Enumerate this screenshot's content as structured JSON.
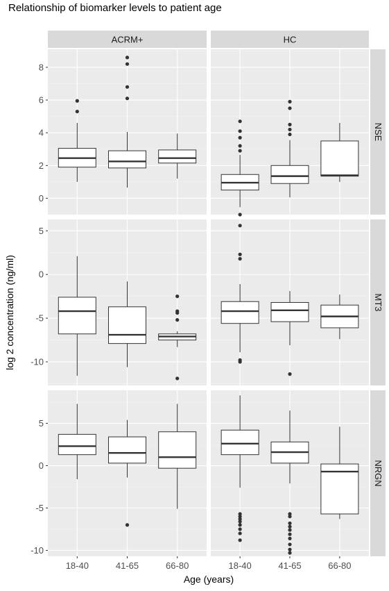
{
  "chart_data": {
    "type": "box",
    "title": "Relationship of biomarker levels to patient age",
    "xlabel": "Age (years)",
    "ylabel": "log 2 concentration (ng/ml)",
    "column_facets": [
      "ACRM+",
      "HC"
    ],
    "categories": [
      "18-40",
      "41-65",
      "66-80"
    ],
    "colors": {
      "panel": "#EBEBEB",
      "strip": "#D9D9D9",
      "grid_major": "#FFFFFF",
      "grid_minor": "#F3F3F3",
      "box_fill": "#FFFFFF",
      "line": "#333333"
    },
    "grid": true,
    "rows": [
      {
        "name": "NSE",
        "ylim": [
          -1.0,
          9.1
        ],
        "yticks": [
          0,
          2,
          4,
          6,
          8
        ],
        "ytick_labels": [
          "0",
          "2",
          "4",
          "6",
          "8"
        ],
        "boxes": {
          "ACRM+": [
            {
              "cat": "18-40",
              "lo": 1.0,
              "q1": 1.9,
              "med": 2.45,
              "q3": 3.05,
              "hi": 4.6,
              "outliers": [
                5.3,
                5.95
              ]
            },
            {
              "cat": "41-65",
              "lo": 0.65,
              "q1": 1.85,
              "med": 2.25,
              "q3": 2.9,
              "hi": 4.05,
              "outliers": [
                6.1,
                6.8,
                8.2,
                8.6
              ]
            },
            {
              "cat": "66-80",
              "lo": 1.2,
              "q1": 2.15,
              "med": 2.45,
              "q3": 2.95,
              "hi": 3.95,
              "outliers": []
            }
          ],
          "HC": [
            {
              "cat": "18-40",
              "lo": -0.55,
              "q1": 0.5,
              "med": 0.95,
              "q3": 1.45,
              "hi": 2.65,
              "outliers": [
                -1.0,
                2.9,
                3.2,
                3.7,
                4.1,
                4.7
              ]
            },
            {
              "cat": "41-65",
              "lo": 0.05,
              "q1": 0.9,
              "med": 1.35,
              "q3": 2.0,
              "hi": 3.55,
              "outliers": [
                3.9,
                4.2,
                4.5,
                5.5,
                5.9
              ]
            },
            {
              "cat": "66-80",
              "lo": 1.0,
              "q1": 1.35,
              "med": 1.4,
              "q3": 3.5,
              "hi": 4.6,
              "outliers": []
            }
          ]
        }
      },
      {
        "name": "MT3",
        "ylim": [
          -12.7,
          6.3
        ],
        "yticks": [
          5,
          0,
          -5,
          -10
        ],
        "ytick_labels": [
          "5",
          "0",
          "-5",
          "-10"
        ],
        "boxes": {
          "ACRM+": [
            {
              "cat": "18-40",
              "lo": -11.6,
              "q1": -6.8,
              "med": -4.2,
              "q3": -2.6,
              "hi": 2.1,
              "outliers": []
            },
            {
              "cat": "41-65",
              "lo": -10.6,
              "q1": -7.9,
              "med": -6.9,
              "q3": -3.7,
              "hi": -0.8,
              "outliers": []
            },
            {
              "cat": "66-80",
              "lo": -8.3,
              "q1": -7.5,
              "med": -7.1,
              "q3": -6.8,
              "hi": -6.5,
              "outliers": [
                -2.5,
                -4.2,
                -4.4,
                -5.2,
                -11.9
              ]
            }
          ],
          "HC": [
            {
              "cat": "18-40",
              "lo": -8.9,
              "q1": -5.6,
              "med": -4.2,
              "q3": -3.1,
              "hi": -1.1,
              "outliers": [
                5.6,
                2.3,
                1.8,
                -9.8,
                -10.0
              ]
            },
            {
              "cat": "41-65",
              "lo": -8.1,
              "q1": -5.4,
              "med": -4.1,
              "q3": -3.2,
              "hi": -1.9,
              "outliers": [
                -11.4
              ]
            },
            {
              "cat": "66-80",
              "lo": -7.4,
              "q1": -6.1,
              "med": -4.8,
              "q3": -3.5,
              "hi": -2.3,
              "outliers": []
            }
          ]
        }
      },
      {
        "name": "NRGN",
        "ylim": [
          -10.7,
          8.9
        ],
        "yticks": [
          5,
          0,
          -5,
          -10
        ],
        "ytick_labels": [
          "5",
          "0",
          "-5",
          "-10"
        ],
        "boxes": {
          "ACRM+": [
            {
              "cat": "18-40",
              "lo": -1.6,
              "q1": 1.3,
              "med": 2.3,
              "q3": 3.7,
              "hi": 7.3,
              "outliers": []
            },
            {
              "cat": "41-65",
              "lo": -1.4,
              "q1": 0.3,
              "med": 1.5,
              "q3": 3.4,
              "hi": 5.4,
              "outliers": [
                -7.0
              ]
            },
            {
              "cat": "66-80",
              "lo": -5.1,
              "q1": -0.3,
              "med": 1.0,
              "q3": 4.0,
              "hi": 7.3,
              "outliers": []
            }
          ],
          "HC": [
            {
              "cat": "18-40",
              "lo": -2.6,
              "q1": 1.3,
              "med": 2.6,
              "q3": 4.2,
              "hi": 8.3,
              "outliers": [
                -5.7,
                -6.0,
                -6.3,
                -6.6,
                -7.0,
                -7.5,
                -8.0,
                -8.8
              ]
            },
            {
              "cat": "41-65",
              "lo": -2.1,
              "q1": 0.3,
              "med": 1.6,
              "q3": 2.8,
              "hi": 6.5,
              "outliers": [
                -5.7,
                -6.0,
                -6.8,
                -7.2,
                -7.6,
                -8.1,
                -8.6,
                -9.3,
                -9.9,
                -10.3
              ]
            },
            {
              "cat": "66-80",
              "lo": -6.3,
              "q1": -5.7,
              "med": -0.7,
              "q3": 0.2,
              "hi": 4.6,
              "outliers": []
            }
          ]
        }
      }
    ]
  }
}
